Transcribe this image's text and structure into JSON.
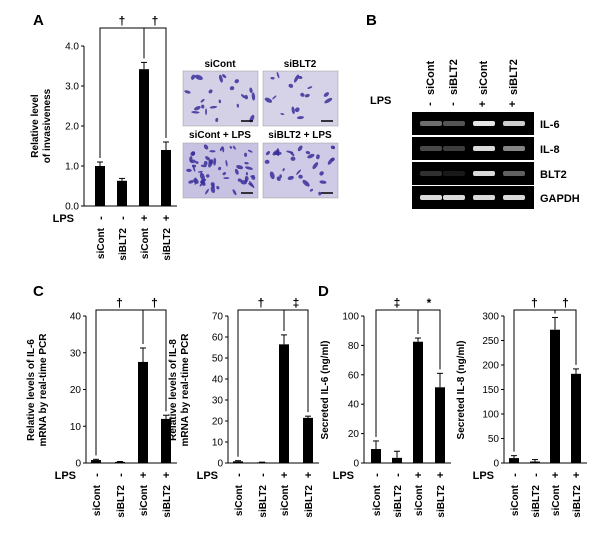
{
  "panels": {
    "A": "A",
    "B": "B",
    "C": "C",
    "D": "D"
  },
  "lps_label": "LPS",
  "microscopy": {
    "labels": [
      "siCont",
      "siBLT2",
      "siCont + LPS",
      "siBLT2 + LPS"
    ]
  },
  "gel": {
    "lanes": [
      "siCont",
      "siBLT2",
      "siCont",
      "siBLT2"
    ],
    "lps": [
      "-",
      "-",
      "+",
      "+"
    ],
    "bands": [
      "IL-6",
      "IL-8",
      "BLT2",
      "GAPDH"
    ],
    "intensity": [
      [
        0.45,
        0.35,
        0.95,
        0.85
      ],
      [
        0.3,
        0.25,
        0.9,
        0.55
      ],
      [
        0.2,
        0.1,
        0.9,
        0.4
      ],
      [
        0.9,
        0.9,
        0.9,
        0.9
      ]
    ]
  },
  "chart_data": [
    {
      "panel": "A",
      "type": "bar",
      "categories": [
        "siCont",
        "siBLT2",
        "siCont",
        "siBLT2"
      ],
      "lps": [
        "-",
        "-",
        "+",
        "+"
      ],
      "values": [
        1.0,
        0.63,
        3.42,
        1.4
      ],
      "errors": [
        0.1,
        0.06,
        0.17,
        0.2
      ],
      "ylabel": "Relative level of invasiveness",
      "ylim": [
        0,
        4.0
      ],
      "yticks": [
        "0.0",
        "1.0",
        "2.0",
        "3.0",
        "4.0"
      ],
      "significance": [
        {
          "from": 0,
          "to": 2,
          "mark": "†"
        },
        {
          "from": 2,
          "to": 3,
          "mark": "†"
        }
      ]
    },
    {
      "panel": "C-left",
      "type": "bar",
      "categories": [
        "siCont",
        "siBLT2",
        "siCont",
        "siBLT2"
      ],
      "lps": [
        "-",
        "-",
        "+",
        "+"
      ],
      "values": [
        0.8,
        0.3,
        27.5,
        12.0
      ],
      "errors": [
        0.2,
        0.1,
        3.8,
        1.0
      ],
      "ylabel": "Relative levels of IL-6 mRNA by real-time PCR",
      "ylim": [
        0,
        40
      ],
      "yticks": [
        "0",
        "10",
        "20",
        "30",
        "40"
      ],
      "significance": [
        {
          "from": 0,
          "to": 2,
          "mark": "†"
        },
        {
          "from": 2,
          "to": 3,
          "mark": "†"
        }
      ]
    },
    {
      "panel": "C-right",
      "type": "bar",
      "categories": [
        "siCont",
        "siBLT2",
        "siCont",
        "siBLT2"
      ],
      "lps": [
        "-",
        "-",
        "+",
        "+"
      ],
      "values": [
        0.8,
        0.3,
        56.5,
        21.5
      ],
      "errors": [
        0.3,
        0.1,
        4.5,
        0.8
      ],
      "ylabel": "Relative levels of IL-8 mRNA by real-time PCR",
      "ylim": [
        0,
        70
      ],
      "yticks": [
        "0",
        "10",
        "20",
        "30",
        "40",
        "50",
        "60",
        "70"
      ],
      "significance": [
        {
          "from": 0,
          "to": 2,
          "mark": "†"
        },
        {
          "from": 2,
          "to": 3,
          "mark": "‡"
        }
      ]
    },
    {
      "panel": "D-left",
      "type": "bar",
      "categories": [
        "siCont",
        "siBLT2",
        "siCont",
        "siBLT2"
      ],
      "lps": [
        "-",
        "-",
        "+",
        "+"
      ],
      "values": [
        9.5,
        3.5,
        82.5,
        51.5
      ],
      "errors": [
        5.5,
        4.5,
        2.5,
        9.5
      ],
      "ylabel": "Secreted IL-6 (ng/ml)",
      "ylim": [
        0,
        100
      ],
      "yticks": [
        "0",
        "20",
        "40",
        "60",
        "80",
        "100"
      ],
      "significance": [
        {
          "from": 0,
          "to": 2,
          "mark": "‡"
        },
        {
          "from": 2,
          "to": 3,
          "mark": "*"
        }
      ]
    },
    {
      "panel": "D-right",
      "type": "bar",
      "categories": [
        "siCont",
        "siBLT2",
        "siCont",
        "siBLT2"
      ],
      "lps": [
        "-",
        "-",
        "+",
        "+"
      ],
      "values": [
        10,
        3,
        272,
        182
      ],
      "errors": [
        5,
        4,
        25,
        10
      ],
      "ylabel": "Secreted IL-8 (ng/ml)",
      "ylim": [
        0,
        300
      ],
      "yticks": [
        "0",
        "50",
        "100",
        "150",
        "200",
        "250",
        "300"
      ],
      "significance": [
        {
          "from": 0,
          "to": 2,
          "mark": "†"
        },
        {
          "from": 2,
          "to": 3,
          "mark": "†"
        }
      ]
    }
  ]
}
